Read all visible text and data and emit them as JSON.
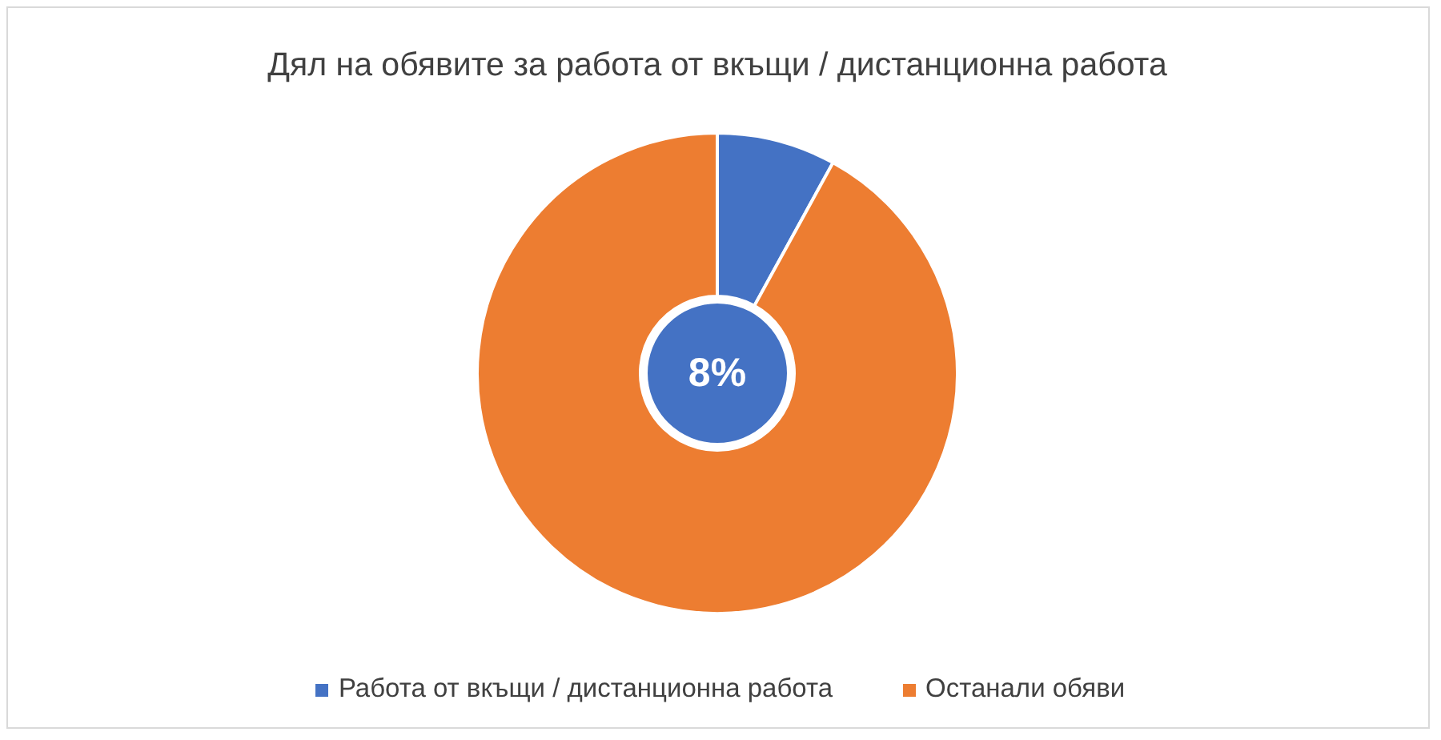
{
  "chart_data": {
    "type": "donut",
    "title": "Дял на обявите за работа от вкъщи / дистанционна работа",
    "categories": [
      "Работа от вкъщи / дистанционна работа",
      "Останали обяви"
    ],
    "values": [
      8,
      92
    ],
    "colors": [
      "#4472c4",
      "#ed7d31"
    ],
    "value_labels": [
      "8%",
      null
    ],
    "legend": "bottom"
  }
}
